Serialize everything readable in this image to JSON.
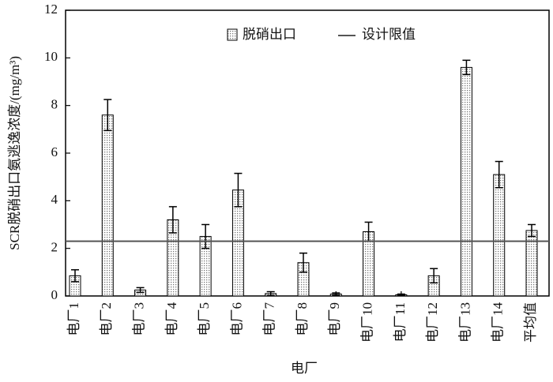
{
  "chart_data": {
    "type": "bar",
    "categories": [
      "电厂1",
      "电厂2",
      "电厂3",
      "电厂4",
      "电厂5",
      "电厂6",
      "电厂7",
      "电厂8",
      "电厂9",
      "电厂10",
      "电厂11",
      "电厂12",
      "电厂13",
      "电厂14",
      "平均值"
    ],
    "series": [
      {
        "name": "脱硝出口",
        "color": "#777777",
        "values": [
          0.85,
          7.6,
          0.25,
          3.2,
          2.5,
          4.45,
          0.1,
          1.4,
          0.08,
          2.7,
          0.05,
          0.85,
          9.6,
          5.1,
          2.75
        ],
        "errors": [
          0.25,
          0.65,
          0.1,
          0.55,
          0.5,
          0.7,
          0.08,
          0.4,
          0.05,
          0.4,
          0.03,
          0.3,
          0.3,
          0.55,
          0.25
        ]
      }
    ],
    "limit": {
      "name": "设计限值",
      "value": 2.3,
      "color": "#555555"
    },
    "x_label": "电厂",
    "y_label": "SCR脱硝出口氨逃逸浓度/(mg/m³)",
    "ylim": [
      0,
      12
    ],
    "yticks": [
      0,
      2,
      4,
      6,
      8,
      10,
      12
    ]
  }
}
